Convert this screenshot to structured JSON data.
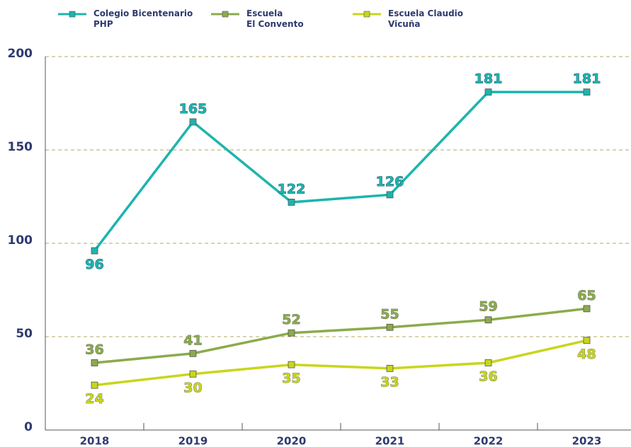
{
  "chart_data": {
    "type": "line",
    "categories": [
      "2018",
      "2019",
      "2020",
      "2021",
      "2022",
      "2023"
    ],
    "series": [
      {
        "name": "Colegio Bicentenario\nPHP",
        "color": "#1cb5ad",
        "values": [
          96,
          165,
          122,
          126,
          181,
          181
        ]
      },
      {
        "name": "Escuela\nEl Convento",
        "color": "#8bab4b",
        "values": [
          36,
          41,
          52,
          55,
          59,
          65
        ]
      },
      {
        "name": "Escuela Claudio\nVicuña",
        "color": "#c8d61c",
        "values": [
          24,
          30,
          35,
          33,
          36,
          48
        ]
      }
    ],
    "ylim": [
      0,
      200
    ],
    "yticks": [
      0,
      50,
      100,
      150,
      200
    ],
    "grid": true
  }
}
